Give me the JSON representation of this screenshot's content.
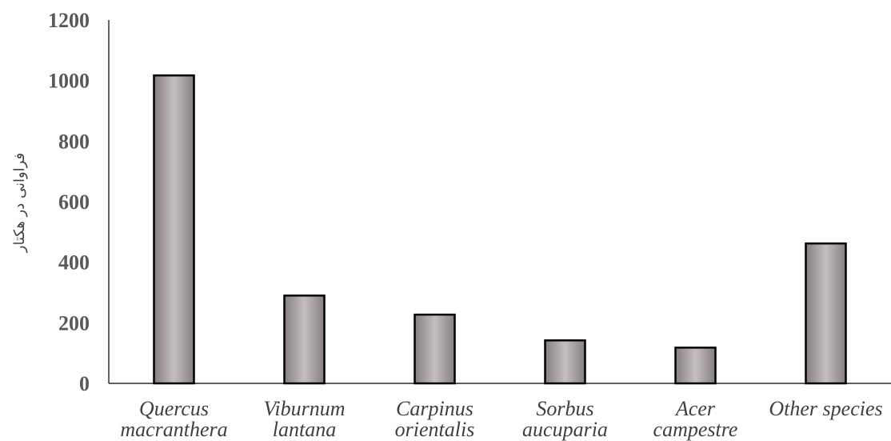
{
  "chart_data": {
    "type": "bar",
    "title": "",
    "xlabel": "",
    "ylabel": "فراوانی در هکتار",
    "ylim": [
      0,
      1200
    ],
    "yticks": [
      "0",
      "200",
      "400",
      "600",
      "800",
      "1000",
      "1200"
    ],
    "grid": false,
    "legend": "none",
    "categories": [
      [
        "Quercus",
        "macranthera"
      ],
      [
        "Viburnum",
        "lantana"
      ],
      [
        "Carpinus",
        "orientalis"
      ],
      [
        "Sorbus",
        "aucuparia"
      ],
      [
        "Acer",
        "campestre"
      ],
      [
        "Other species"
      ]
    ],
    "values": [
      1017,
      290,
      227,
      142,
      118,
      462
    ],
    "colors": {
      "bar_fill_center": "#c4bebe",
      "bar_fill_edge": "#857f7f",
      "bar_stroke": "#000000",
      "axis": "#000000"
    }
  }
}
